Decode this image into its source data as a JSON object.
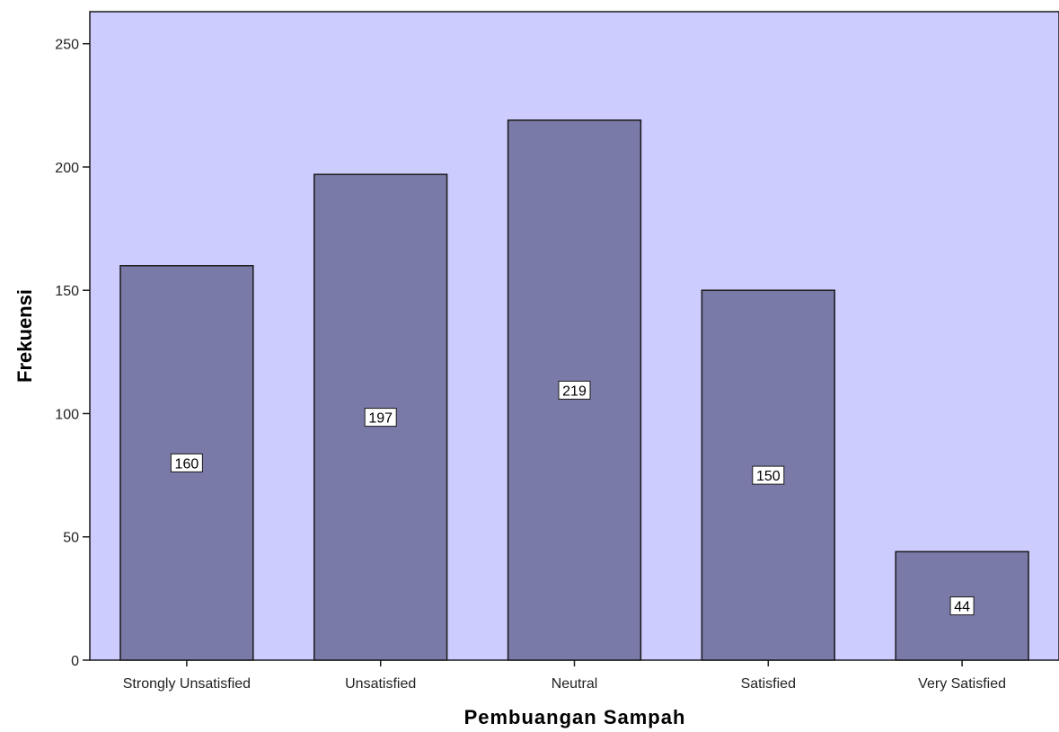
{
  "chart_data": {
    "type": "bar",
    "categories": [
      "Strongly Unsatisfied",
      "Unsatisfied",
      "Neutral",
      "Satisfied",
      "Very Satisfied"
    ],
    "values": [
      160,
      197,
      219,
      150,
      44
    ],
    "data_labels": [
      "160",
      "197",
      "219",
      "150",
      "44"
    ],
    "title": "",
    "xlabel": "Pembuangan Sampah",
    "ylabel": "Frekuensi",
    "ylim": [
      0,
      263
    ],
    "yticks": [
      0,
      50,
      100,
      150,
      200,
      250
    ],
    "grid": false,
    "legend": "none",
    "colors": {
      "plot_background": "#ccccff",
      "bar_fill": "#7a7aa8",
      "bar_stroke": "#1a1a1a",
      "label_box": "#ffffff"
    }
  }
}
